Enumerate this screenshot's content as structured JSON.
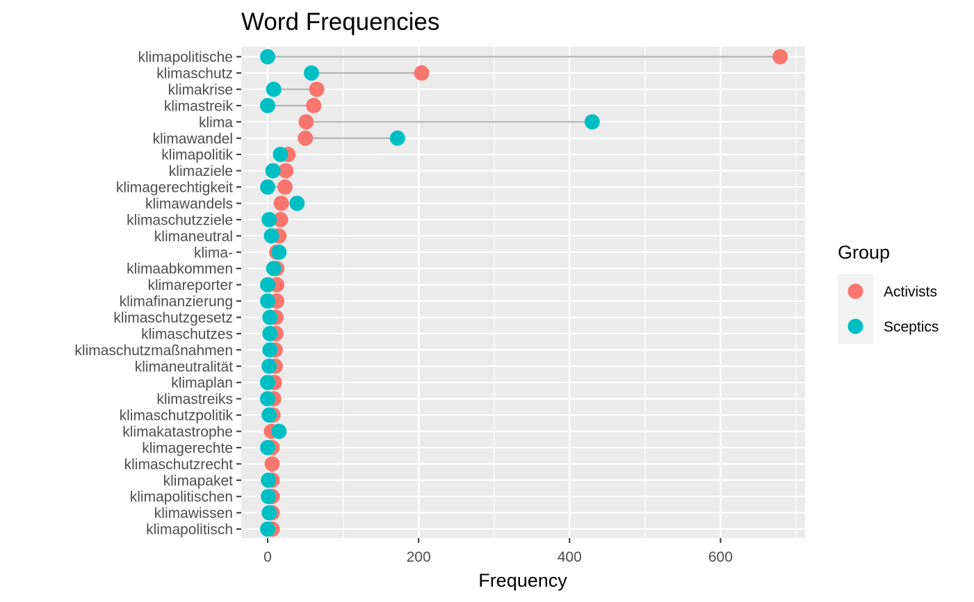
{
  "chart_data": {
    "type": "scatter",
    "subtype": "dumbbell",
    "title": "Word Frequencies",
    "xlabel": "Frequency",
    "ylabel": "",
    "xlim": [
      -35,
      712
    ],
    "xticks": [
      0,
      200,
      400,
      600
    ],
    "grid": true,
    "legend": {
      "title": "Group",
      "position": "right"
    },
    "categories": [
      "klimapolitische",
      "klimaschutz",
      "klimakrise",
      "klimastreik",
      "klima",
      "klimawandel",
      "klimapolitik",
      "klimaziele",
      "klimagerechtigkeit",
      "klimawandels",
      "klimaschutzziele",
      "klimaneutral",
      "klima-",
      "klimaabkommen",
      "klimareporter",
      "klimafinanzierung",
      "klimaschutzgesetz",
      "klimaschutzes",
      "klimaschutzmaßnahmen",
      "klimaneutralität",
      "klimaplan",
      "klimastreiks",
      "klimaschutzpolitik",
      "klimakatastrophe",
      "klimagerechte",
      "klimaschutzrecht",
      "klimapaket",
      "klimapolitischen",
      "klimawissen",
      "klimapolitisch"
    ],
    "series": [
      {
        "name": "Activists",
        "color": "#F8766D",
        "values": [
          679,
          204,
          65,
          61,
          51,
          50,
          27,
          24,
          23,
          18,
          17,
          15,
          12,
          12,
          12,
          12,
          11,
          11,
          10,
          10,
          9,
          8,
          7,
          5,
          6,
          6,
          6,
          6,
          6,
          6
        ]
      },
      {
        "name": "Sceptics",
        "color": "#00BFC4",
        "values": [
          0,
          58,
          8,
          0,
          430,
          172,
          17,
          7,
          0,
          39,
          2,
          5,
          15,
          8,
          0,
          0,
          3,
          3,
          3,
          2,
          0,
          0,
          2,
          15,
          0,
          null,
          1,
          1,
          2,
          0
        ]
      }
    ]
  },
  "colors": {
    "panel_bg": "#EBEBEB",
    "grid": "#FFFFFF",
    "segment": "#B3B3B3"
  }
}
